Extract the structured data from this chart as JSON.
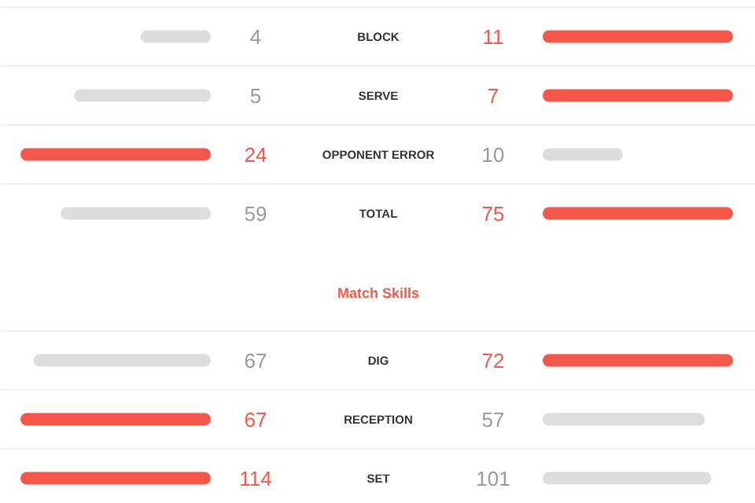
{
  "chart_data": [
    {
      "type": "other",
      "categories": [
        "BLOCK",
        "SERVE",
        "OPPONENT ERROR",
        "TOTAL"
      ],
      "data_labels": true,
      "series": [
        {
          "values": [
            4,
            5,
            24,
            59
          ],
          "colors": [
            "#dddddd",
            "#dddddd",
            "#f4584a",
            "#dddddd"
          ]
        },
        {
          "values": [
            11,
            7,
            10,
            75
          ],
          "colors": [
            "#f4584a",
            "#f4584a",
            "#dddddd",
            "#f4584a"
          ]
        }
      ]
    },
    {
      "type": "other",
      "title": "Match Skills",
      "categories": [
        "DIG",
        "RECEPTION",
        "SET"
      ],
      "data_labels": true,
      "series": [
        {
          "values": [
            67,
            67,
            114
          ],
          "colors": [
            "#dddddd",
            "#f4584a",
            "#f4584a"
          ]
        },
        {
          "values": [
            72,
            57,
            101
          ],
          "colors": [
            "#f4584a",
            "#dddddd",
            "#dddddd"
          ]
        }
      ]
    }
  ]
}
